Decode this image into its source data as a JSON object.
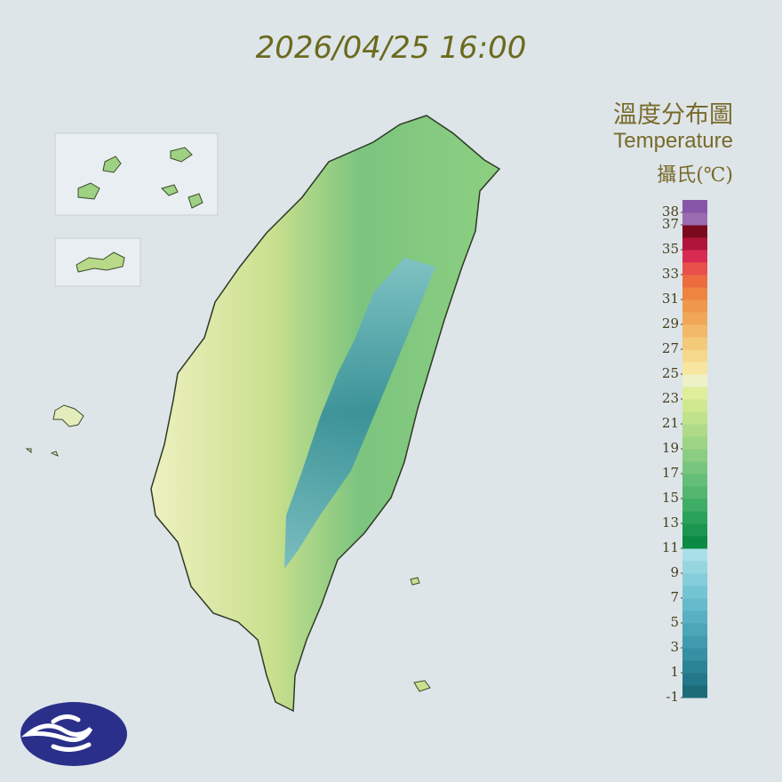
{
  "header": {
    "timestamp": "2026/04/25 16:00"
  },
  "legend": {
    "title": "溫度分布圖",
    "subtitle": "Temperature",
    "unit": "攝氏(℃)",
    "range": [
      -1,
      39
    ],
    "ticks": [
      38,
      37,
      35,
      33,
      31,
      29,
      27,
      25,
      23,
      21,
      19,
      17,
      15,
      13,
      11,
      9,
      7,
      5,
      3,
      1,
      -1
    ],
    "colors": [
      "#1d6b78",
      "#23788a",
      "#2b8496",
      "#3490a2",
      "#3f9bad",
      "#4ba6b8",
      "#58b0c2",
      "#66bacb",
      "#75c4d3",
      "#85cdda",
      "#96d6e1",
      "#a8dfe8",
      "#0a8a43",
      "#1b9650",
      "#2ba25c",
      "#3ead66",
      "#52b66f",
      "#65be77",
      "#78c67d",
      "#8bcd82",
      "#9dd486",
      "#afdb88",
      "#c0e28b",
      "#d0e88f",
      "#dfee9a",
      "#ecf2c6",
      "#f7e6a0",
      "#f5d88a",
      "#f3c97a",
      "#f2b968",
      "#f0a858",
      "#ef974a",
      "#ed8540",
      "#ec6b3f",
      "#e9504a",
      "#d82b52",
      "#b0143a",
      "#7a0a1e",
      "#9a6bb0",
      "#8856a8"
    ]
  }
}
